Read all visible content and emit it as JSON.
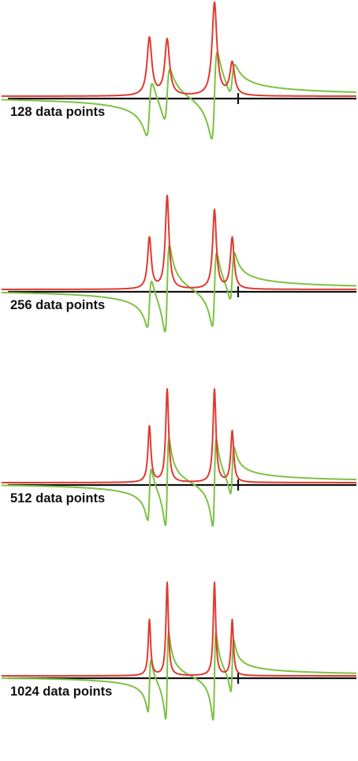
{
  "colors": {
    "absorption": "#e03a2e",
    "dispersion": "#7cc243",
    "axis": "#111111"
  },
  "chart_data": [
    {
      "type": "line",
      "label": "128 data points",
      "points": 128,
      "line_positions": [
        -0.75,
        -0.6,
        -0.2,
        -0.05
      ],
      "amplitudes": [
        0.62,
        0.6,
        1.0,
        0.35
      ]
    },
    {
      "type": "line",
      "label": "256 data points",
      "points": 256,
      "line_positions": [
        -0.75,
        -0.6,
        -0.2,
        -0.05
      ],
      "amplitudes": [
        0.55,
        1.0,
        0.85,
        0.55
      ]
    },
    {
      "type": "line",
      "label": "512 data points",
      "points": 512,
      "line_positions": [
        -0.75,
        -0.6,
        -0.2,
        -0.05
      ],
      "amplitudes": [
        0.6,
        1.0,
        1.0,
        0.55
      ]
    },
    {
      "type": "line",
      "label": "1024 data points",
      "points": 1024,
      "line_positions": [
        -0.75,
        -0.6,
        -0.2,
        -0.05
      ],
      "amplitudes": [
        0.6,
        1.0,
        1.0,
        0.6
      ]
    }
  ]
}
